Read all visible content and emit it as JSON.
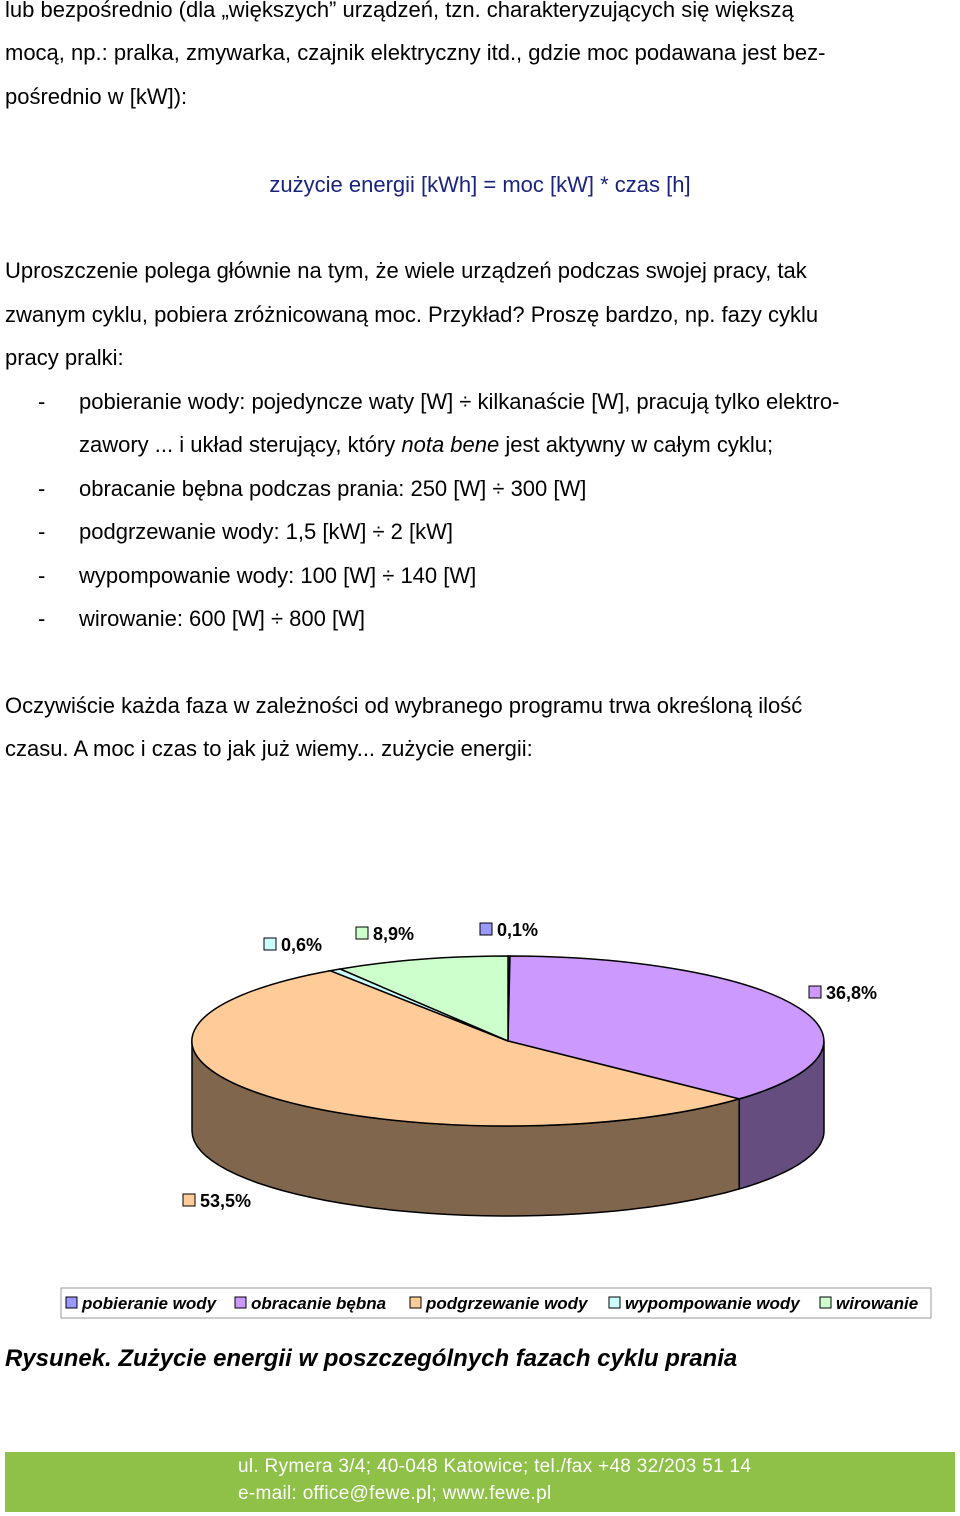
{
  "intro": {
    "line1": "lub bezpośrednio (dla „większych” urządzeń, tzn. charakteryzujących się większą",
    "line2": "mocą, np.: pralka, zmywarka, czajnik elektryczny itd., gdzie moc podawana jest bez-",
    "line3": "pośrednio w [kW]):"
  },
  "formula": "zużycie energii [kWh] = moc [kW] * czas [h]",
  "para1": {
    "line1": "Uproszczenie polega głównie na tym, że wiele urządzeń podczas swojej pracy, tak",
    "line2": "zwanym cyklu, pobiera zróżnicowaną moc. Przykład? Proszę bardzo, np. fazy cyklu",
    "line3": "pracy pralki:"
  },
  "list": {
    "dash": "-",
    "item1_line1": "pobieranie wody: pojedyncze waty [W] ÷ kilkanaście [W], pracują tylko elektro-",
    "item1_line2_a": "zawory ... i układ sterujący, który ",
    "item1_line2_italic": "nota bene",
    "item1_line2_b": " jest aktywny w całym cyklu;",
    "item2": "obracanie bębna podczas prania: 250 [W] ÷ 300 [W]",
    "item3": "podgrzewanie wody: 1,5 [kW] ÷ 2 [kW]",
    "item4": "wypompowanie wody: 100 [W] ÷ 140 [W]",
    "item5": "wirowanie: 600 [W] ÷ 800 [W]"
  },
  "para2": {
    "line1": "Oczywiście każda faza w zależności od wybranego programu trwa określoną ilość",
    "line2": "czasu. A moc i czas to jak już wiemy... zużycie energii:"
  },
  "chart_data": {
    "type": "pie",
    "style": "3d",
    "title": "",
    "slices": [
      {
        "name": "pobieranie wody",
        "value": 0.1,
        "label": "0,1%",
        "color": "#9999ff"
      },
      {
        "name": "obracanie bębna",
        "value": 36.8,
        "label": "36,8%",
        "color": "#cc99ff"
      },
      {
        "name": "podgrzewanie wody",
        "value": 53.5,
        "label": "53,5%",
        "color": "#ffcc99"
      },
      {
        "name": "wypompowanie wody",
        "value": 0.6,
        "label": "0,6%",
        "color": "#ccffff"
      },
      {
        "name": "wirowanie",
        "value": 8.9,
        "label": "8,9%",
        "color": "#ccffcc"
      }
    ],
    "legend_position": "bottom"
  },
  "caption": "Rysunek. Zużycie energii w poszczególnych fazach cyklu prania",
  "footer": {
    "line1": "ul. Rymera 3/4; 40-048 Katowice; tel./fax +48 32/203 51 14",
    "line2": "e-mail: office@fewe.pl; www.fewe.pl",
    "color": "#8fc048"
  }
}
